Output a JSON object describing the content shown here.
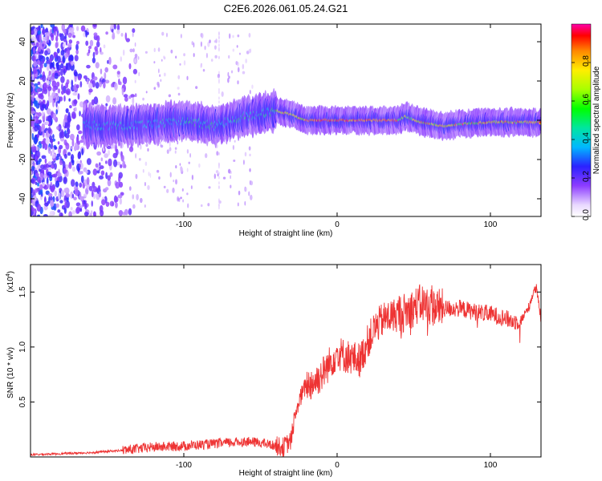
{
  "title": "C2E6.2026.061.05.24.G21",
  "chart_data": [
    {
      "type": "heatmap",
      "xlabel": "Height of straight line (km)",
      "ylabel": "Frequency (Hz)",
      "xlim": [
        -200,
        133
      ],
      "ylim": [
        -49,
        49
      ],
      "xticks": [
        -100,
        0,
        100
      ],
      "yticks": [
        -40,
        -20,
        0,
        20,
        40
      ],
      "colorbar": {
        "label": "Normalized spectral amplitude",
        "range": [
          0,
          1
        ],
        "ticks": [
          "0.0",
          "0.2",
          "0.4",
          "0.6",
          "0.8"
        ],
        "tick_values": [
          0.0,
          0.2,
          0.4,
          0.6,
          0.8
        ]
      },
      "ridge": {
        "description_points_x": [
          -200,
          -150,
          -120,
          -100,
          -80,
          -60,
          -50,
          -40,
          -30,
          -20,
          0,
          20,
          30,
          40,
          45,
          55,
          70,
          80,
          100,
          133
        ],
        "description_points_y": [
          0,
          -3,
          -2,
          0,
          -3,
          2,
          3,
          5,
          3,
          0,
          0,
          0,
          0,
          0,
          2,
          -1,
          -3,
          -2,
          -1,
          -1
        ]
      }
    },
    {
      "type": "line",
      "xlabel": "Height of straight line (km)",
      "ylabel": "SNR (10 * v/v)",
      "multiplier": "(x10",
      "multiplier_exp": "4",
      "multiplier_close": ")",
      "xlim": [
        -200,
        133
      ],
      "ylim": [
        0,
        17500
      ],
      "xticks": [
        -100,
        0,
        100
      ],
      "yticks": [
        5000,
        10000,
        15000
      ],
      "ytick_labels": [
        "0.5",
        "1.0",
        "1.5"
      ],
      "series": [
        {
          "name": "SNR",
          "color": "#ee3333",
          "x": [
            -200,
            -180,
            -160,
            -140,
            -120,
            -100,
            -80,
            -60,
            -50,
            -40,
            -35,
            -30,
            -28,
            -25,
            -22,
            -20,
            -15,
            -10,
            -5,
            0,
            5,
            10,
            15,
            20,
            25,
            30,
            35,
            40,
            45,
            50,
            55,
            60,
            70,
            80,
            90,
            100,
            110,
            115,
            120,
            125,
            128,
            130,
            133
          ],
          "y": [
            200,
            300,
            400,
            600,
            900,
            1000,
            1200,
            1400,
            1300,
            1000,
            900,
            1500,
            3500,
            5000,
            6000,
            6500,
            6800,
            7500,
            8500,
            9500,
            9200,
            9000,
            8800,
            10500,
            11800,
            12500,
            12800,
            13000,
            13200,
            13600,
            14000,
            13700,
            13500,
            13500,
            13200,
            13000,
            12600,
            12300,
            12400,
            13600,
            15000,
            15300,
            12500
          ]
        }
      ]
    }
  ]
}
